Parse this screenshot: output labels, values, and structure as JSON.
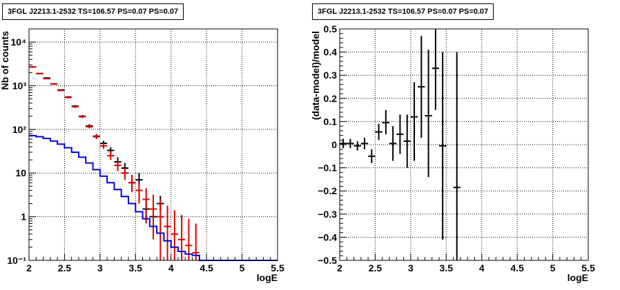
{
  "colors": {
    "black": "#000000",
    "red": "#dd0000",
    "blue": "#0000dd",
    "grid": "#000000"
  },
  "chart_data": [
    {
      "type": "scatter",
      "title": "3FGL J2213.1-2532 TS=106.57 PS=0.07 PS=0.07",
      "xlabel": "logE",
      "ylabel": "Nb of counts",
      "xlim": [
        2,
        5.5
      ],
      "ylim": [
        0.1,
        20000
      ],
      "yscale": "log",
      "grid": true,
      "x_ticks": [
        "2",
        "2.5",
        "3",
        "3.5",
        "4",
        "4.5",
        "5",
        "5.5"
      ],
      "y_ticks": [
        "10⁻¹",
        "1",
        "10",
        "10²",
        "10³",
        "10⁴"
      ],
      "series": [
        {
          "color": "#000000",
          "style": "points",
          "x": [
            2.05,
            2.15,
            2.25,
            2.35,
            2.45,
            2.55,
            2.65,
            2.75,
            2.85,
            2.95,
            3.05,
            3.15,
            3.25,
            3.35,
            3.45,
            3.55,
            3.65,
            3.75,
            3.85
          ],
          "y": [
            2700,
            1900,
            1500,
            1100,
            800,
            550,
            340,
            200,
            120,
            70,
            48,
            33,
            18,
            13,
            6,
            7,
            1.5,
            1.0,
            2.0
          ],
          "yerr_low": [
            2600,
            1850,
            1460,
            1070,
            770,
            525,
            320,
            186,
            109,
            62,
            41,
            27,
            14,
            9.5,
            3.7,
            4.5,
            0.8,
            0.7,
            1.4
          ],
          "yerr_high": [
            2800,
            1950,
            1540,
            1130,
            830,
            575,
            360,
            214,
            131,
            78,
            55,
            39,
            23,
            17,
            9,
            10,
            2.4,
            1.8,
            3.0
          ]
        },
        {
          "color": "#dd0000",
          "style": "points",
          "x": [
            2.05,
            2.15,
            2.25,
            2.35,
            2.45,
            2.55,
            2.65,
            2.75,
            2.85,
            2.95,
            3.05,
            3.15,
            3.25,
            3.35,
            3.45,
            3.55,
            3.65,
            3.75,
            3.85,
            3.95,
            4.05,
            4.15,
            4.25,
            4.35
          ],
          "y": [
            2700,
            1900,
            1450,
            1100,
            780,
            540,
            330,
            195,
            115,
            68,
            42,
            25,
            15,
            10,
            6,
            4,
            2.5,
            1.5,
            1.0,
            0.6,
            0.4,
            0.3,
            0.22,
            0.15
          ],
          "yerr_low": [
            2600,
            1850,
            1410,
            1070,
            750,
            515,
            310,
            182,
            105,
            60,
            36,
            20,
            11,
            7,
            3.7,
            2,
            0.7,
            0.3,
            0.1,
            0.1,
            0.1,
            0.1,
            0.1,
            0.1
          ],
          "yerr_high": [
            2800,
            1950,
            1490,
            1130,
            810,
            565,
            350,
            208,
            125,
            76,
            48,
            30,
            19,
            13,
            8.5,
            6,
            4.5,
            3.2,
            2.5,
            1.8,
            1.4,
            1.1,
            0.9,
            0.7
          ]
        },
        {
          "color": "#0000dd",
          "style": "step",
          "edges": [
            2.0,
            2.1,
            2.2,
            2.3,
            2.4,
            2.5,
            2.6,
            2.7,
            2.8,
            2.9,
            3.0,
            3.1,
            3.2,
            3.3,
            3.4,
            3.5,
            3.6,
            3.7,
            3.8,
            3.9,
            4.0,
            4.1,
            4.2,
            4.3,
            4.4,
            4.5,
            5.5
          ],
          "values": [
            72,
            68,
            62,
            54,
            46,
            38,
            30,
            23,
            17,
            12,
            8.5,
            6.0,
            4.2,
            2.9,
            2.0,
            1.3,
            0.9,
            0.6,
            0.42,
            0.28,
            0.2,
            0.16,
            0.14,
            0.13,
            0.1,
            0.1
          ]
        }
      ]
    },
    {
      "type": "scatter",
      "title": "3FGL J2213.1-2532 TS=106.57 PS=0.07 PS=0.07",
      "xlabel": "logE",
      "ylabel": "(data-model)/model",
      "xlim": [
        2,
        5.5
      ],
      "ylim": [
        -0.5,
        0.5
      ],
      "grid": true,
      "x_ticks": [
        "2",
        "2.5",
        "3",
        "3.5",
        "4",
        "4.5",
        "5",
        "5.5"
      ],
      "y_ticks": [
        "−0.5",
        "−0.4",
        "−0.3",
        "−0.2",
        "−0.1",
        "0",
        "0.1",
        "0.2",
        "0.3",
        "0.4",
        "0.5"
      ],
      "series": [
        {
          "color": "#000000",
          "style": "points",
          "x": [
            2.05,
            2.15,
            2.25,
            2.35,
            2.45,
            2.55,
            2.65,
            2.75,
            2.85,
            2.95,
            3.05,
            3.15,
            3.25,
            3.35,
            3.45,
            3.65
          ],
          "y": [
            0.005,
            0.005,
            -0.005,
            0.005,
            -0.05,
            0.055,
            0.095,
            0.005,
            0.045,
            0.015,
            0.12,
            0.25,
            0.125,
            0.33,
            -0.005,
            -0.185
          ],
          "yerr_low": [
            -0.015,
            -0.015,
            -0.025,
            -0.02,
            -0.08,
            0.02,
            0.045,
            -0.07,
            -0.04,
            -0.1,
            -0.07,
            0.03,
            -0.14,
            0.15,
            -0.41,
            -0.5
          ],
          "yerr_high": [
            0.025,
            0.025,
            0.015,
            0.03,
            -0.02,
            0.09,
            0.15,
            0.08,
            0.13,
            0.13,
            0.27,
            0.47,
            0.41,
            0.5,
            0.4,
            0.4
          ]
        }
      ]
    }
  ]
}
